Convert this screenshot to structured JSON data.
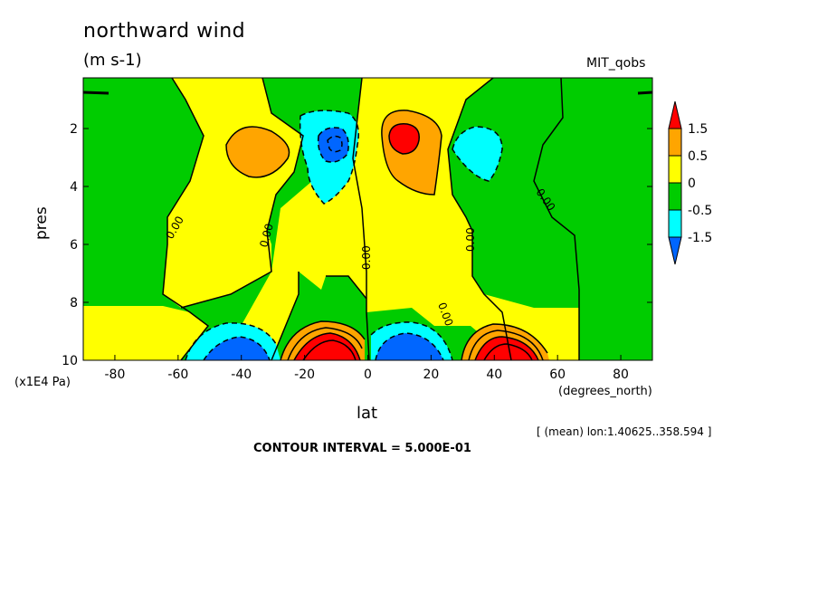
{
  "chart_data": {
    "type": "contour",
    "title": "northward wind",
    "units": "(m s-1)",
    "dataset": "MIT_qobs",
    "xlabel": "lat",
    "xunits": "(degrees_north)",
    "ylabel": "pres",
    "yunits": "(x1E4 Pa)",
    "xlim": [
      -90,
      90
    ],
    "ylim": [
      10,
      0.25
    ],
    "xticks": [
      "-80",
      "-60",
      "-40",
      "-20",
      "0",
      "20",
      "40",
      "60",
      "80"
    ],
    "yticks": [
      "2",
      "4",
      "6",
      "8",
      "10"
    ],
    "region": "[ (mean) lon:1.40625..358.594 ]",
    "contour_interval": "CONTOUR INTERVAL = 5.000E-01",
    "colorbar": {
      "labels": [
        "1.5",
        "0.5",
        "0",
        "-0.5",
        "-1.5"
      ],
      "colors": [
        "#ff0000",
        "#ffa500",
        "#ffff00",
        "#00cc00",
        "#00ffff",
        "#0066ff"
      ]
    },
    "contour_labels": [
      "0.00",
      "0.00",
      "0.00",
      "0.00",
      "0.00",
      "0.00",
      "0.00"
    ],
    "features": [
      {
        "kind": "max",
        "lat": -40,
        "pres": 2.5,
        "value_range": "0.5..1.5"
      },
      {
        "kind": "min",
        "lat": -11,
        "pres": 2.3,
        "value_range": "< -1.5"
      },
      {
        "kind": "max",
        "lat": 11,
        "pres": 2.3,
        "value_range": "> 1.5"
      },
      {
        "kind": "min",
        "lat": 37,
        "pres": 2.6,
        "value_range": "-1.5..-0.5"
      },
      {
        "kind": "min",
        "lat": -40,
        "pres": 9.8,
        "value_range": "< -1.5"
      },
      {
        "kind": "max",
        "lat": -11,
        "pres": 9.8,
        "value_range": "> 1.5"
      },
      {
        "kind": "min",
        "lat": 11,
        "pres": 9.8,
        "value_range": "< -1.5"
      },
      {
        "kind": "max",
        "lat": 40,
        "pres": 9.8,
        "value_range": "> 1.5"
      }
    ]
  }
}
